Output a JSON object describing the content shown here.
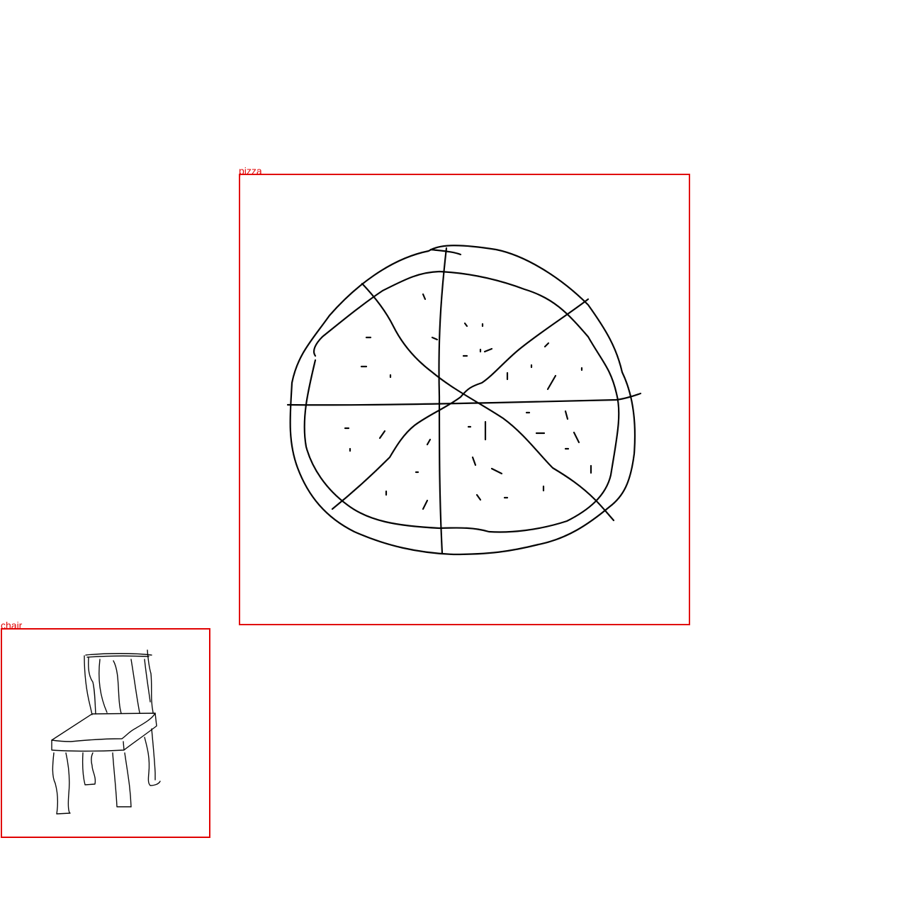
{
  "annotations": [
    {
      "id": "pizza",
      "label": "pizza"
    },
    {
      "id": "chair",
      "label": "chair"
    }
  ],
  "style": {
    "box_color": "#e00000",
    "stroke_color": "#000000",
    "background": "#ffffff"
  },
  "icons": {
    "pizza": "pizza-sketch-icon",
    "chair": "chair-sketch-icon"
  }
}
